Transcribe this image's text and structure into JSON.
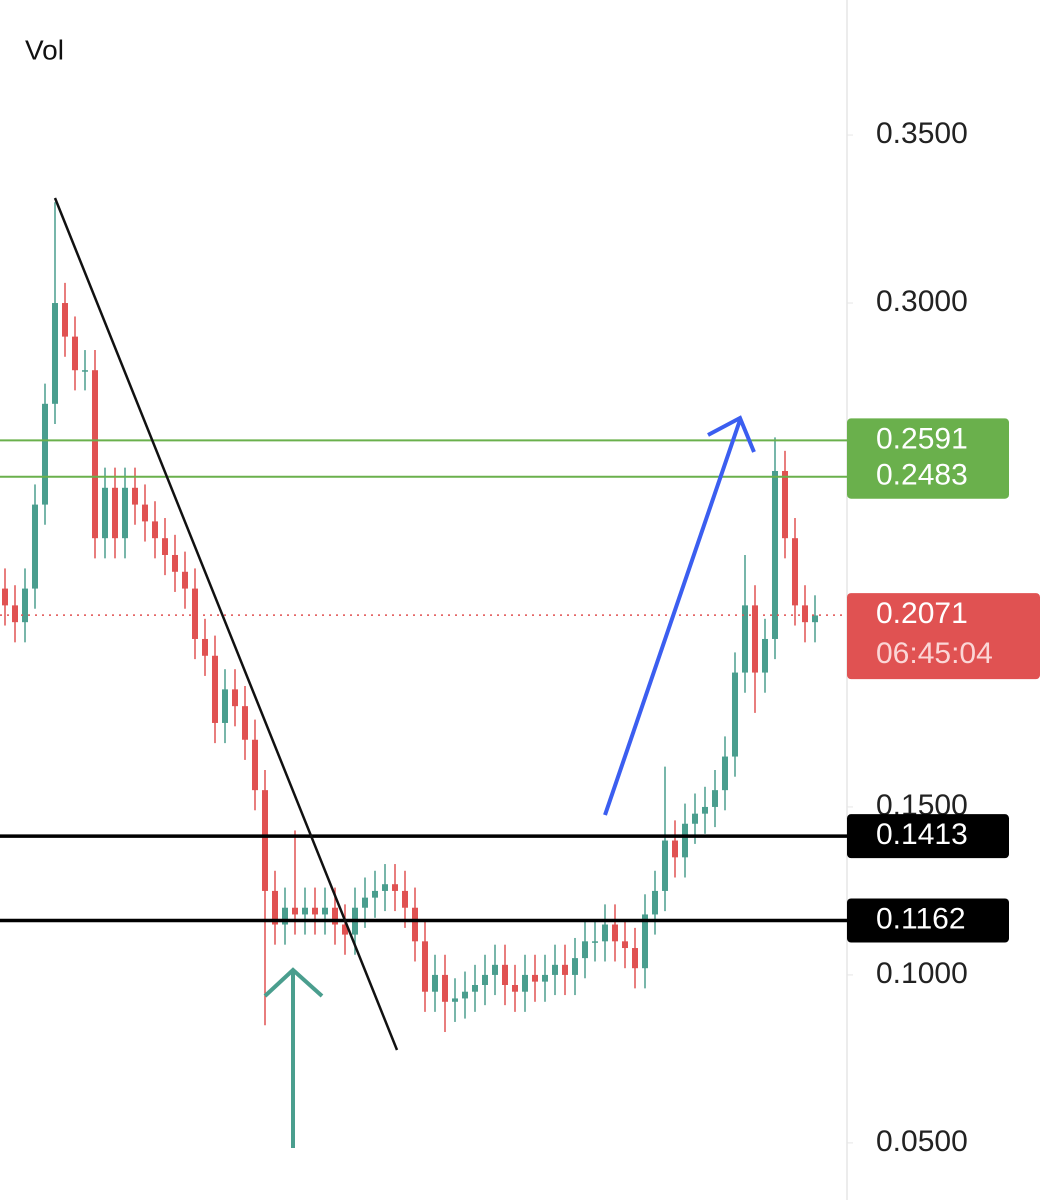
{
  "chart_data": {
    "type": "candlestick",
    "title": "Vol",
    "ylim": [
      0.033,
      0.3902
    ],
    "yticks": [
      {
        "value": 0.05,
        "label": "0.0500"
      },
      {
        "value": 0.1,
        "label": "0.1000"
      },
      {
        "value": 0.15,
        "label": "0.1500"
      },
      {
        "value": 0.3,
        "label": "0.3000"
      },
      {
        "value": 0.35,
        "label": "0.3500"
      }
    ],
    "up_color": "#4a9e8e",
    "down_color": "#e05252",
    "candles": [
      [
        0.215,
        0.221,
        0.204,
        0.21
      ],
      [
        0.21,
        0.216,
        0.199,
        0.205
      ],
      [
        0.205,
        0.221,
        0.199,
        0.215
      ],
      [
        0.215,
        0.246,
        0.209,
        0.24
      ],
      [
        0.24,
        0.276,
        0.234,
        0.27
      ],
      [
        0.27,
        0.33,
        0.264,
        0.3
      ],
      [
        0.3,
        0.306,
        0.284,
        0.29
      ],
      [
        0.29,
        0.296,
        0.274,
        0.28
      ],
      [
        0.28,
        0.286,
        0.274,
        0.28
      ],
      [
        0.28,
        0.286,
        0.224,
        0.23
      ],
      [
        0.23,
        0.251,
        0.224,
        0.245
      ],
      [
        0.245,
        0.251,
        0.224,
        0.23
      ],
      [
        0.23,
        0.251,
        0.224,
        0.245
      ],
      [
        0.245,
        0.251,
        0.234,
        0.24
      ],
      [
        0.24,
        0.246,
        0.229,
        0.235
      ],
      [
        0.235,
        0.241,
        0.224,
        0.23
      ],
      [
        0.23,
        0.236,
        0.219,
        0.225
      ],
      [
        0.225,
        0.231,
        0.214,
        0.22
      ],
      [
        0.22,
        0.226,
        0.209,
        0.215
      ],
      [
        0.215,
        0.221,
        0.194,
        0.2
      ],
      [
        0.2,
        0.206,
        0.189,
        0.195
      ],
      [
        0.195,
        0.201,
        0.169,
        0.175
      ],
      [
        0.175,
        0.191,
        0.169,
        0.185
      ],
      [
        0.185,
        0.191,
        0.174,
        0.18
      ],
      [
        0.18,
        0.186,
        0.164,
        0.17
      ],
      [
        0.17,
        0.176,
        0.149,
        0.155
      ],
      [
        0.155,
        0.161,
        0.085,
        0.125
      ],
      [
        0.125,
        0.131,
        0.109,
        0.115
      ],
      [
        0.115,
        0.126,
        0.109,
        0.12
      ],
      [
        0.12,
        0.143,
        0.112,
        0.118
      ],
      [
        0.118,
        0.126,
        0.112,
        0.12
      ],
      [
        0.12,
        0.126,
        0.112,
        0.118
      ],
      [
        0.118,
        0.126,
        0.112,
        0.12
      ],
      [
        0.12,
        0.126,
        0.109,
        0.115
      ],
      [
        0.115,
        0.121,
        0.106,
        0.112
      ],
      [
        0.112,
        0.126,
        0.106,
        0.12
      ],
      [
        0.12,
        0.129,
        0.114,
        0.123
      ],
      [
        0.123,
        0.131,
        0.117,
        0.125
      ],
      [
        0.125,
        0.133,
        0.119,
        0.127
      ],
      [
        0.127,
        0.133,
        0.119,
        0.125
      ],
      [
        0.125,
        0.131,
        0.114,
        0.12
      ],
      [
        0.12,
        0.126,
        0.104,
        0.11
      ],
      [
        0.11,
        0.116,
        0.089,
        0.095
      ],
      [
        0.095,
        0.106,
        0.089,
        0.1
      ],
      [
        0.1,
        0.106,
        0.083,
        0.092
      ],
      [
        0.092,
        0.099,
        0.086,
        0.093
      ],
      [
        0.093,
        0.101,
        0.087,
        0.095
      ],
      [
        0.095,
        0.103,
        0.089,
        0.097
      ],
      [
        0.097,
        0.106,
        0.091,
        0.1
      ],
      [
        0.1,
        0.109,
        0.094,
        0.103
      ],
      [
        0.103,
        0.109,
        0.091,
        0.097
      ],
      [
        0.097,
        0.103,
        0.089,
        0.095
      ],
      [
        0.095,
        0.106,
        0.089,
        0.1
      ],
      [
        0.1,
        0.106,
        0.092,
        0.098
      ],
      [
        0.098,
        0.106,
        0.092,
        0.1
      ],
      [
        0.1,
        0.109,
        0.094,
        0.103
      ],
      [
        0.103,
        0.109,
        0.094,
        0.1
      ],
      [
        0.1,
        0.111,
        0.094,
        0.105
      ],
      [
        0.105,
        0.116,
        0.099,
        0.11
      ],
      [
        0.11,
        0.116,
        0.104,
        0.11
      ],
      [
        0.11,
        0.121,
        0.104,
        0.115
      ],
      [
        0.115,
        0.121,
        0.104,
        0.11
      ],
      [
        0.11,
        0.116,
        0.102,
        0.108
      ],
      [
        0.108,
        0.114,
        0.096,
        0.102
      ],
      [
        0.102,
        0.124,
        0.096,
        0.118
      ],
      [
        0.118,
        0.131,
        0.112,
        0.125
      ],
      [
        0.125,
        0.162,
        0.119,
        0.14
      ],
      [
        0.14,
        0.146,
        0.129,
        0.135
      ],
      [
        0.135,
        0.151,
        0.129,
        0.145
      ],
      [
        0.145,
        0.154,
        0.139,
        0.148
      ],
      [
        0.148,
        0.156,
        0.142,
        0.15
      ],
      [
        0.15,
        0.161,
        0.144,
        0.155
      ],
      [
        0.155,
        0.171,
        0.149,
        0.165
      ],
      [
        0.165,
        0.196,
        0.159,
        0.19
      ],
      [
        0.19,
        0.225,
        0.184,
        0.21
      ],
      [
        0.21,
        0.216,
        0.178,
        0.19
      ],
      [
        0.19,
        0.206,
        0.184,
        0.2
      ],
      [
        0.2,
        0.26,
        0.194,
        0.25
      ],
      [
        0.25,
        0.256,
        0.224,
        0.23
      ],
      [
        0.23,
        0.236,
        0.204,
        0.21
      ],
      [
        0.21,
        0.216,
        0.199,
        0.205
      ],
      [
        0.205,
        0.213,
        0.199,
        0.207
      ]
    ],
    "levels": [
      {
        "value": 0.2591,
        "color": "#6ab04c"
      },
      {
        "value": 0.2483,
        "color": "#6ab04c"
      },
      {
        "value": 0.1413,
        "color": "#000000"
      },
      {
        "value": 0.1162,
        "color": "#000000"
      }
    ],
    "last_price": 0.2071,
    "last_price_color": "#e05252",
    "countdown": "06:45:04"
  }
}
